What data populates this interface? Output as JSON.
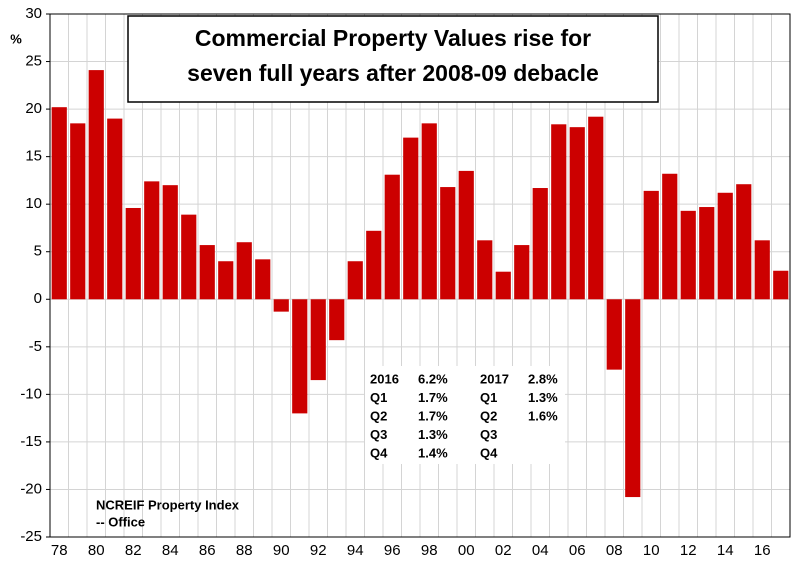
{
  "chart_data": {
    "type": "bar",
    "title": [
      "Commercial Property Values rise for",
      "seven full years after 2008-09 debacle"
    ],
    "y_label": "%",
    "source": [
      "NCREIF Property Index",
      "-- Office"
    ],
    "categories": [
      "78",
      null,
      "80",
      null,
      "82",
      null,
      "84",
      null,
      "86",
      null,
      "88",
      null,
      "90",
      null,
      "92",
      null,
      "94",
      null,
      "96",
      null,
      "98",
      null,
      "00",
      null,
      "02",
      null,
      "04",
      null,
      "06",
      null,
      "08",
      null,
      "10",
      null,
      "12",
      null,
      "14",
      null,
      "16",
      null
    ],
    "values": [
      20.2,
      18.5,
      24.1,
      19.0,
      9.6,
      12.4,
      12.0,
      8.9,
      5.7,
      4.0,
      6.0,
      4.2,
      -1.3,
      -12.0,
      -8.5,
      -4.3,
      4.0,
      7.2,
      13.1,
      17.0,
      18.5,
      11.8,
      13.5,
      6.2,
      2.9,
      5.7,
      11.7,
      18.4,
      18.1,
      19.2,
      -7.4,
      -20.8,
      11.4,
      13.2,
      9.3,
      9.7,
      11.2,
      12.1,
      6.2,
      3.0
    ],
    "color": "#cc0000",
    "ylim": [
      -25,
      30
    ],
    "yticks": [
      -25,
      -20,
      -15,
      -10,
      -5,
      0,
      5,
      10,
      15,
      20,
      25,
      30
    ],
    "grid": true,
    "annotation": {
      "left": [
        [
          "2016",
          "6.2%"
        ],
        [
          "Q1",
          "1.7%"
        ],
        [
          "Q2",
          "1.7%"
        ],
        [
          "Q3",
          "1.3%"
        ],
        [
          "Q4",
          "1.4%"
        ]
      ],
      "right": [
        [
          "2017",
          "2.8%"
        ],
        [
          "Q1",
          "1.3%"
        ],
        [
          "Q2",
          "1.6%"
        ],
        [
          "Q3"
        ],
        [
          "Q4"
        ]
      ]
    }
  }
}
